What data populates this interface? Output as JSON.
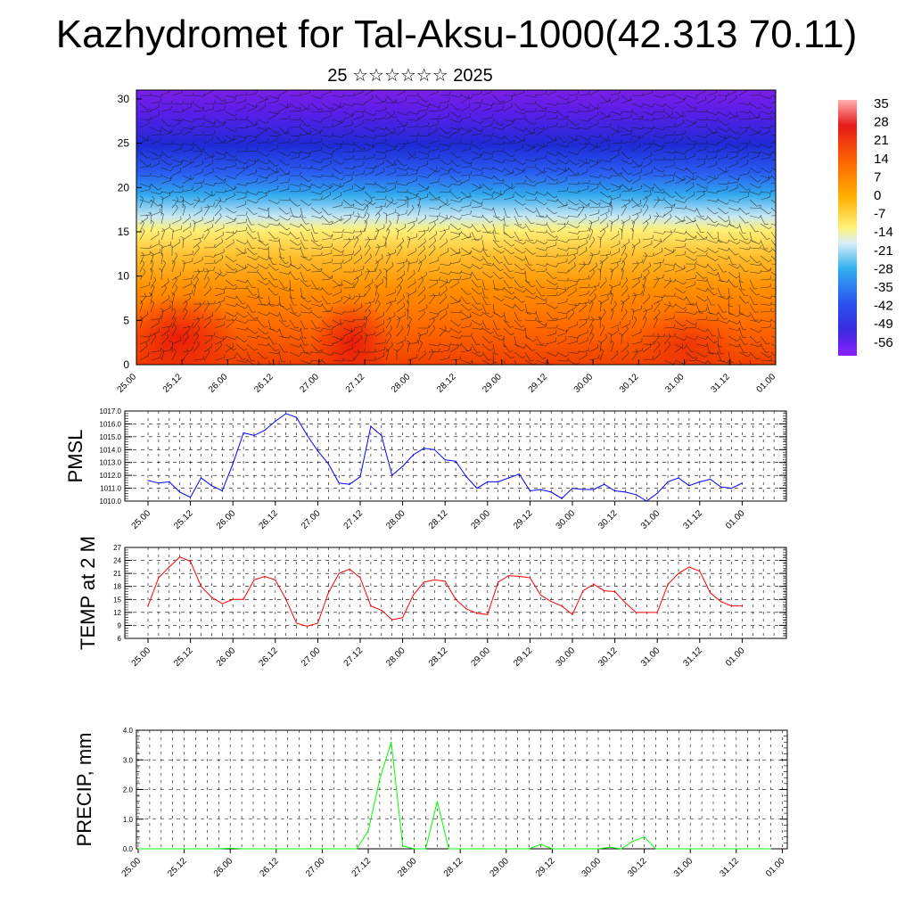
{
  "title": "Kazhydromet for Tal-Aksu-1000(42.313 70.11)",
  "subtitle": "25 ☆☆☆☆☆☆ 2025",
  "time_labels": [
    "25.00",
    "25.12",
    "26.00",
    "26.12",
    "27.00",
    "27.12",
    "28.00",
    "28.12",
    "29.00",
    "29.12",
    "30.00",
    "30.12",
    "31.00",
    "31.12",
    "01.00"
  ],
  "chart_data": [
    {
      "type": "heatmap",
      "description_variable": "temperature vs height with wind barbs",
      "x_ticks": [
        "25.00",
        "25.12",
        "26.00",
        "26.12",
        "27.00",
        "27.12",
        "28.00",
        "28.12",
        "29.00",
        "29.12",
        "30.00",
        "30.12",
        "31.00",
        "31.12",
        "01.00"
      ],
      "y_ticks": [
        0,
        5,
        10,
        15,
        20,
        25,
        30
      ],
      "ylim": [
        0,
        31
      ],
      "colorbar_labels": [
        "35",
        "28",
        "21",
        "14",
        "7",
        "0",
        "-7",
        "-14",
        "-21",
        "-28",
        "-35",
        "-42",
        "-49",
        "-56"
      ],
      "colorbar_range": [
        -60,
        38
      ],
      "colors": [
        "#7f00ff",
        "#1a20e6",
        "#2e8fe8",
        "#bfe3f2",
        "#fff27a",
        "#ffb000",
        "#ff6a00",
        "#e61a00",
        "#ff8c8c"
      ]
    },
    {
      "type": "line",
      "ylabel": "PMSL",
      "ylim": [
        1010.0,
        1017.0
      ],
      "y_ticks": [
        "1010.0",
        "1011.0",
        "1012.0",
        "1013.0",
        "1014.0",
        "1015.0",
        "1016.0",
        "1017.0"
      ],
      "color": "#0000ff",
      "values": [
        1011.6,
        1011.4,
        1011.5,
        1010.7,
        1010.3,
        1011.8,
        1011.2,
        1010.8,
        1012.9,
        1015.3,
        1015.1,
        1015.5,
        1016.2,
        1016.8,
        1016.5,
        1015.1,
        1013.9,
        1012.9,
        1011.4,
        1011.3,
        1011.9,
        1015.8,
        1015.1,
        1012.0,
        1012.7,
        1013.6,
        1014.1,
        1014.0,
        1013.2,
        1013.1,
        1011.9,
        1011.0,
        1011.5,
        1011.5,
        1011.8,
        1012.1,
        1010.8,
        1010.9,
        1010.7,
        1010.2,
        1011.0,
        1010.9,
        1010.9,
        1011.3,
        1010.8,
        1010.7,
        1010.5,
        1010.0,
        1010.6,
        1011.5,
        1011.8,
        1011.2,
        1011.5,
        1011.7,
        1011.1,
        1011.0,
        1011.4
      ]
    },
    {
      "type": "line",
      "ylabel": "TEMP at 2 M",
      "ylim": [
        6,
        27
      ],
      "y_ticks": [
        "6",
        "9",
        "12",
        "15",
        "18",
        "21",
        "24",
        "27"
      ],
      "color": "#ff0000",
      "values": [
        13.5,
        20.0,
        22.5,
        24.8,
        23.8,
        18.0,
        15.5,
        14.0,
        15.0,
        15.0,
        19.5,
        20.3,
        19.5,
        15.0,
        9.5,
        8.8,
        9.5,
        16.5,
        21.0,
        22.0,
        20.0,
        13.5,
        12.5,
        10.3,
        10.8,
        16.0,
        19.0,
        19.5,
        19.2,
        15.0,
        12.8,
        11.8,
        11.5,
        19.0,
        20.5,
        20.3,
        20.0,
        16.0,
        14.5,
        13.5,
        11.5,
        17.0,
        18.5,
        17.0,
        16.8,
        14.2,
        12.0,
        12.0,
        12.0,
        18.5,
        21.0,
        22.5,
        21.5,
        16.5,
        14.5,
        13.5,
        13.5
      ]
    },
    {
      "type": "bar",
      "ylabel": "PRECIP, mm",
      "ylim": [
        0.0,
        4.0
      ],
      "y_ticks": [
        "0.0",
        "1.0",
        "2.0",
        "3.0",
        "4.0"
      ],
      "color": "#00ff00",
      "values": [
        0,
        0,
        0,
        0,
        0,
        0,
        0,
        0,
        0.02,
        0,
        0,
        0,
        0,
        0,
        0,
        0,
        0,
        0,
        0,
        0,
        0.6,
        2.35,
        3.6,
        0.1,
        0,
        0,
        1.6,
        0,
        0,
        0,
        0,
        0,
        0,
        0,
        0,
        0.15,
        0,
        0,
        0,
        0,
        0,
        0.05,
        0,
        0.25,
        0.4,
        0,
        0,
        0,
        0,
        0,
        0,
        0,
        0,
        0,
        0,
        0
      ]
    }
  ]
}
